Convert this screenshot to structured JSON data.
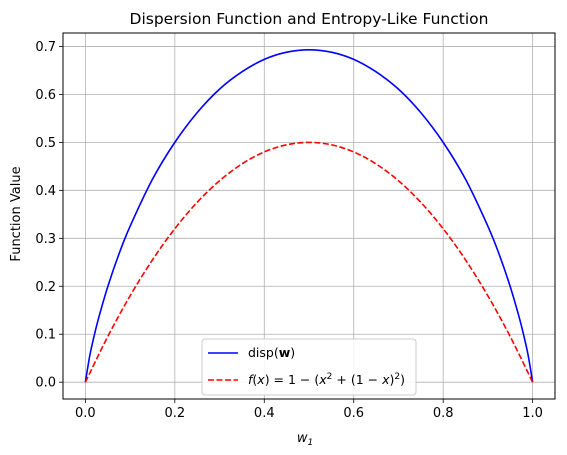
{
  "chart_data": {
    "type": "line",
    "title": "Dispersion Function and Entropy-Like Function",
    "xlabel": "w",
    "xlabel_sub": "1",
    "ylabel": "Function Value",
    "xlim": [
      -0.05,
      1.05
    ],
    "ylim": [
      -0.035,
      0.728
    ],
    "xticks": [
      0.0,
      0.2,
      0.4,
      0.6,
      0.8,
      1.0
    ],
    "xtick_labels": [
      "0.0",
      "0.2",
      "0.4",
      "0.6",
      "0.8",
      "1.0"
    ],
    "yticks": [
      0.0,
      0.1,
      0.2,
      0.3,
      0.4,
      0.5,
      0.6,
      0.7
    ],
    "ytick_labels": [
      "0.0",
      "0.1",
      "0.2",
      "0.3",
      "0.4",
      "0.5",
      "0.6",
      "0.7"
    ],
    "grid": true,
    "legend_position": "lower-center",
    "series": [
      {
        "name": "disp(w)",
        "color": "#0000ff",
        "line_style": "solid",
        "x": [
          0.0,
          0.01,
          0.02,
          0.03,
          0.05,
          0.075,
          0.1,
          0.15,
          0.2,
          0.25,
          0.3,
          0.35,
          0.4,
          0.45,
          0.5,
          0.55,
          0.6,
          0.65,
          0.7,
          0.75,
          0.8,
          0.85,
          0.9,
          0.925,
          0.95,
          0.97,
          0.98,
          0.99,
          1.0
        ],
        "y": [
          0.0,
          0.056,
          0.098,
          0.135,
          0.199,
          0.267,
          0.325,
          0.423,
          0.5,
          0.562,
          0.611,
          0.647,
          0.673,
          0.688,
          0.693,
          0.688,
          0.673,
          0.647,
          0.611,
          0.562,
          0.5,
          0.423,
          0.325,
          0.267,
          0.199,
          0.135,
          0.098,
          0.056,
          0.0
        ]
      },
      {
        "name": "f(x) = 1 − (x² + (1 − x)²)",
        "color": "#ff0000",
        "line_style": "dashed",
        "x": [
          0.0,
          0.05,
          0.1,
          0.15,
          0.2,
          0.25,
          0.3,
          0.35,
          0.4,
          0.45,
          0.5,
          0.55,
          0.6,
          0.65,
          0.7,
          0.75,
          0.8,
          0.85,
          0.9,
          0.95,
          1.0
        ],
        "y": [
          0.0,
          0.095,
          0.18,
          0.255,
          0.32,
          0.375,
          0.42,
          0.455,
          0.48,
          0.495,
          0.5,
          0.495,
          0.48,
          0.455,
          0.42,
          0.375,
          0.32,
          0.255,
          0.18,
          0.095,
          0.0
        ]
      }
    ]
  }
}
